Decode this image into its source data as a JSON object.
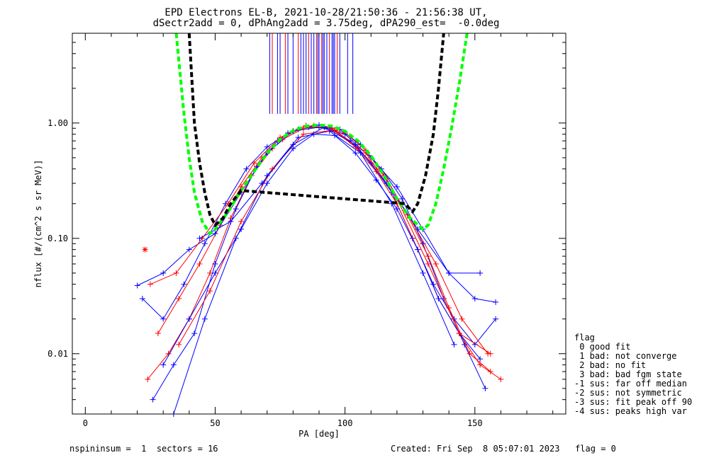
{
  "title_lines": [
    "EPD Electrons EL-B, 2021-10-28/21:50:36 - 21:56:38 UT,",
    "dSectr2add = 0, dPhAng2add = 3.75deg, dPA290_est=  -0.0deg"
  ],
  "footer": {
    "left": "nspininsum =  1  sectors = 16",
    "right": "Created: Fri Sep  8 05:07:01 2023   flag = 0"
  },
  "legend": {
    "title": "flag",
    "items": [
      " 0 good fit",
      " 1 bad: not converge",
      " 2 bad: no fit",
      " 3 bad: bad fgm state",
      "-1 sus: far off median",
      "-2 sus: not symmetric",
      "-3 sus: fit peak off 90",
      "-4 sus: peaks high var"
    ]
  },
  "colors": {
    "series_a": "#ff0000",
    "series_b": "#0000ff",
    "fit_green": "#00ff00",
    "fit_black": "#000000"
  },
  "chart_data": {
    "type": "line",
    "xlabel": "PA [deg]",
    "ylabel": "nflux [#/(cm^2 s sr MeV)]",
    "xlim": [
      -5,
      185
    ],
    "ylim": [
      0.003,
      6.0
    ],
    "yscale": "log",
    "xticks": [
      0,
      50,
      100,
      150
    ],
    "xtick_labels": [
      "0",
      "50",
      "100",
      "150"
    ],
    "yticks": [
      0.01,
      0.1,
      1.0
    ],
    "ytick_labels": [
      "0.01",
      "0.10",
      "1.00"
    ],
    "grid": false,
    "legend_position": "right, outside plot",
    "series": [
      {
        "color": "#0000ff",
        "marker": "+",
        "x": [
          22,
          30,
          38,
          46,
          54,
          62,
          70,
          78,
          86,
          94,
          102,
          110,
          118,
          126,
          134,
          142,
          150,
          158
        ],
        "y": [
          0.03,
          0.02,
          0.04,
          0.09,
          0.2,
          0.4,
          0.62,
          0.82,
          0.92,
          0.9,
          0.7,
          0.45,
          0.25,
          0.1,
          0.04,
          0.02,
          0.012,
          0.02
        ]
      },
      {
        "color": "#ff0000",
        "marker": "+",
        "x": [
          24,
          32,
          40,
          48,
          56,
          64,
          72,
          80,
          88,
          96,
          104,
          112,
          120,
          128,
          136,
          144,
          152,
          160
        ],
        "y": [
          0.006,
          0.01,
          0.02,
          0.05,
          0.15,
          0.35,
          0.6,
          0.85,
          0.95,
          0.85,
          0.62,
          0.38,
          0.2,
          0.08,
          0.03,
          0.015,
          0.008,
          0.006
        ]
      },
      {
        "color": "#0000ff",
        "marker": "+",
        "x": [
          26,
          34,
          42,
          50,
          58,
          66,
          74,
          82,
          90,
          98,
          106,
          114,
          122,
          130,
          138,
          146,
          154
        ],
        "y": [
          0.004,
          0.008,
          0.015,
          0.06,
          0.18,
          0.42,
          0.7,
          0.88,
          0.96,
          0.88,
          0.65,
          0.4,
          0.22,
          0.09,
          0.03,
          0.012,
          0.005
        ]
      },
      {
        "color": "#ff0000",
        "marker": "+",
        "x": [
          28,
          36,
          44,
          52,
          60,
          68,
          76,
          84,
          92,
          100,
          108,
          116,
          124,
          132,
          140,
          148,
          156
        ],
        "y": [
          0.015,
          0.03,
          0.06,
          0.13,
          0.28,
          0.5,
          0.72,
          0.9,
          0.93,
          0.82,
          0.58,
          0.33,
          0.16,
          0.07,
          0.025,
          0.01,
          0.007
        ]
      },
      {
        "color": "#0000ff",
        "marker": "+",
        "x": [
          20,
          30,
          40,
          50,
          60,
          70,
          80,
          90,
          100,
          110,
          120,
          130,
          140,
          150,
          158
        ],
        "y": [
          0.039,
          0.05,
          0.08,
          0.11,
          0.25,
          0.55,
          0.85,
          0.92,
          0.8,
          0.5,
          0.28,
          0.12,
          0.05,
          0.03,
          0.028
        ]
      },
      {
        "color": "#ff0000",
        "marker": "+",
        "x": [
          25,
          35,
          45,
          55,
          65,
          75,
          85,
          95,
          105,
          115,
          125,
          135,
          145,
          155
        ],
        "y": [
          0.04,
          0.05,
          0.1,
          0.2,
          0.45,
          0.75,
          0.95,
          0.9,
          0.6,
          0.35,
          0.15,
          0.06,
          0.02,
          0.01
        ]
      },
      {
        "color": "#0000ff",
        "marker": "+",
        "x": [
          30,
          40,
          50,
          60,
          70,
          80,
          88,
          96,
          104,
          112,
          120,
          128,
          136,
          144,
          152
        ],
        "y": [
          0.008,
          0.02,
          0.05,
          0.12,
          0.3,
          0.6,
          0.8,
          0.78,
          0.55,
          0.32,
          0.18,
          0.08,
          0.03,
          0.015,
          0.009
        ]
      },
      {
        "color": "#0000ff",
        "marker": "+",
        "x": [
          34,
          46,
          58,
          70,
          82,
          94,
          106,
          118,
          130,
          142
        ],
        "y": [
          0.003,
          0.02,
          0.1,
          0.35,
          0.75,
          0.85,
          0.55,
          0.2,
          0.05,
          0.012
        ]
      },
      {
        "color": "#ff0000",
        "marker": "+",
        "x": [
          36,
          48,
          60,
          72,
          84,
          96,
          108,
          120,
          132,
          144,
          156
        ],
        "y": [
          0.012,
          0.035,
          0.14,
          0.4,
          0.8,
          0.87,
          0.55,
          0.22,
          0.06,
          0.015,
          0.01
        ]
      },
      {
        "color": "#0000ff",
        "marker": "+",
        "x": [
          44,
          56,
          68,
          80,
          92,
          104,
          116,
          128,
          140,
          152
        ],
        "y": [
          0.1,
          0.14,
          0.3,
          0.65,
          0.92,
          0.65,
          0.3,
          0.12,
          0.05,
          0.05
        ]
      }
    ],
    "fit_curves": [
      {
        "color": "#00ff00",
        "style": "dashed",
        "x": [
          35,
          38,
          40,
          42,
          45,
          48,
          50,
          55,
          60,
          65,
          70,
          75,
          80,
          85,
          90,
          95,
          100,
          105,
          110,
          115,
          120,
          125,
          130,
          132,
          135,
          138,
          141,
          144,
          147
        ],
        "y": [
          6.0,
          1.2,
          0.5,
          0.25,
          0.14,
          0.11,
          0.12,
          0.17,
          0.26,
          0.38,
          0.55,
          0.72,
          0.86,
          0.94,
          0.96,
          0.94,
          0.85,
          0.7,
          0.52,
          0.35,
          0.22,
          0.15,
          0.12,
          0.13,
          0.2,
          0.4,
          0.9,
          2.2,
          6.0
        ]
      },
      {
        "color": "#000000",
        "style": "dashed",
        "x": [
          40,
          42,
          44,
          46,
          48,
          50,
          53,
          56,
          60,
          123,
          126,
          128,
          131,
          134,
          136,
          138
        ],
        "y": [
          6.0,
          1.0,
          0.45,
          0.25,
          0.16,
          0.13,
          0.15,
          0.2,
          0.26,
          0.2,
          0.17,
          0.2,
          0.35,
          0.8,
          2.0,
          6.0
        ]
      }
    ],
    "markers": [
      {
        "color": "#ff0000",
        "symbol": "*",
        "x": 23,
        "y": 0.08
      }
    ],
    "vertical_lines": {
      "top": 6.0,
      "bottom": 1.2,
      "items": [
        {
          "x": 71,
          "color": "#0000ff"
        },
        {
          "x": 72,
          "color": "#ff0000"
        },
        {
          "x": 74,
          "color": "#0000ff"
        },
        {
          "x": 75,
          "color": "#0000ff"
        },
        {
          "x": 77,
          "color": "#ff0000"
        },
        {
          "x": 78,
          "color": "#0000ff"
        },
        {
          "x": 80,
          "color": "#0000ff"
        },
        {
          "x": 82,
          "color": "#ff0000"
        },
        {
          "x": 83,
          "color": "#0000ff"
        },
        {
          "x": 84,
          "color": "#0000ff"
        },
        {
          "x": 85,
          "color": "#0000ff"
        },
        {
          "x": 86,
          "color": "#ff0000"
        },
        {
          "x": 87,
          "color": "#0000ff"
        },
        {
          "x": 88,
          "color": "#0000ff"
        },
        {
          "x": 89,
          "color": "#ff0000"
        },
        {
          "x": 89.5,
          "color": "#0000ff"
        },
        {
          "x": 90,
          "color": "#0000ff"
        },
        {
          "x": 91,
          "color": "#ff0000"
        },
        {
          "x": 91.5,
          "color": "#0000ff"
        },
        {
          "x": 92,
          "color": "#0000ff"
        },
        {
          "x": 93,
          "color": "#0000ff"
        },
        {
          "x": 94,
          "color": "#ff0000"
        },
        {
          "x": 95,
          "color": "#0000ff"
        },
        {
          "x": 95.5,
          "color": "#0000ff"
        },
        {
          "x": 96,
          "color": "#0000ff"
        },
        {
          "x": 97,
          "color": "#ff0000"
        },
        {
          "x": 98,
          "color": "#0000ff"
        },
        {
          "x": 101,
          "color": "#0000ff"
        },
        {
          "x": 103,
          "color": "#0000ff"
        }
      ]
    }
  }
}
